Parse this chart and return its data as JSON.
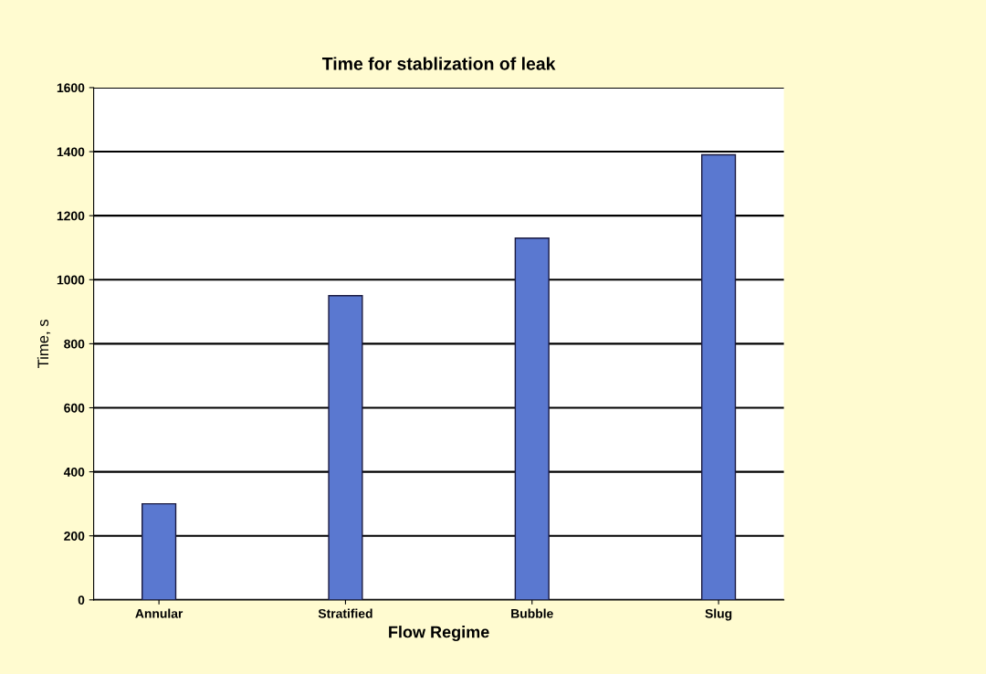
{
  "chart_data": {
    "type": "bar",
    "title": "Time for stablization of leak",
    "xlabel": "Flow Regime",
    "ylabel": "Time, s",
    "categories": [
      "Annular",
      "Stratified",
      "Bubble",
      "Slug"
    ],
    "values": [
      300,
      950,
      1130,
      1390
    ],
    "color": "#5a78d0",
    "ylim": [
      0,
      1600
    ],
    "yticks": [
      0,
      200,
      400,
      600,
      800,
      1000,
      1200,
      1400,
      1600
    ],
    "grid": "y",
    "legend": false
  }
}
